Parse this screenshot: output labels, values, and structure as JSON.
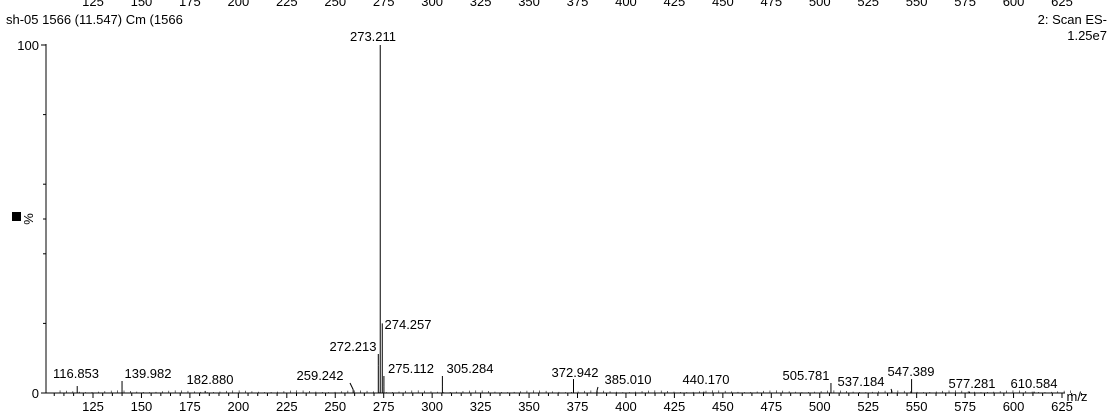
{
  "header": {
    "sample_line": "sh-05 1566 (11.547) Cm (1566",
    "scan_label": "2: Scan ES-",
    "intensity": "1.25e7"
  },
  "top_ticks": [
    "125",
    "150",
    "175",
    "200",
    "225",
    "250",
    "275",
    "300",
    "325",
    "350",
    "375",
    "400",
    "425",
    "450",
    "475",
    "500",
    "525",
    "550",
    "575",
    "600",
    "625"
  ],
  "colors": {
    "ink": "#000000",
    "background": "#ffffff"
  },
  "chart_data": {
    "type": "bar",
    "title": "",
    "xlabel": "m/z",
    "ylabel": "%",
    "xlim": [
      100,
      640
    ],
    "ylim": [
      0,
      100
    ],
    "x_ticks": [
      125,
      150,
      175,
      200,
      225,
      250,
      275,
      300,
      325,
      350,
      375,
      400,
      425,
      450,
      475,
      500,
      525,
      550,
      575,
      600,
      625
    ],
    "y_ticks": [
      0,
      100
    ],
    "grid": false,
    "legend": "none",
    "peaks": [
      {
        "x": 116.853,
        "y": 2,
        "label": "116.853"
      },
      {
        "x": 139.982,
        "y": 1,
        "label": "139.982"
      },
      {
        "x": 182.88,
        "y": 0.6,
        "label": "182.880"
      },
      {
        "x": 259.242,
        "y": 1,
        "label": "259.242"
      },
      {
        "x": 272.213,
        "y": 8,
        "label": "272.213"
      },
      {
        "x": 273.211,
        "y": 100,
        "label": "273.211"
      },
      {
        "x": 274.257,
        "y": 20,
        "label": "274.257"
      },
      {
        "x": 275.112,
        "y": 2,
        "label": "275.112"
      },
      {
        "x": 305.284,
        "y": 2,
        "label": "305.284"
      },
      {
        "x": 372.942,
        "y": 4,
        "label": "372.942"
      },
      {
        "x": 385.01,
        "y": 0.6,
        "label": "385.010"
      },
      {
        "x": 440.17,
        "y": 0.4,
        "label": "440.170"
      },
      {
        "x": 505.781,
        "y": 1,
        "label": "505.781"
      },
      {
        "x": 537.184,
        "y": 0.6,
        "label": "537.184"
      },
      {
        "x": 547.389,
        "y": 4,
        "label": "547.389"
      },
      {
        "x": 577.281,
        "y": 0.4,
        "label": "577.281"
      },
      {
        "x": 610.584,
        "y": 0.4,
        "label": "610.584"
      }
    ]
  }
}
